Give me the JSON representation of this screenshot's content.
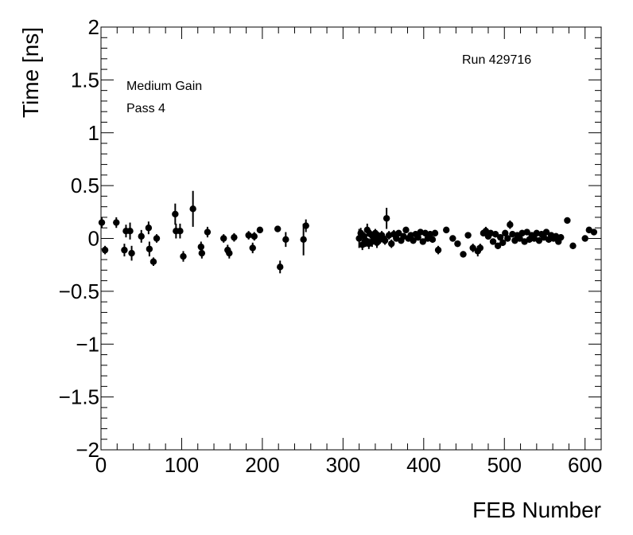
{
  "chart_data": {
    "type": "scatter",
    "title": "",
    "xlabel": "FEB Number",
    "ylabel": "Time [ns]",
    "xlim": [
      0,
      620
    ],
    "ylim": [
      -2,
      2
    ],
    "xticks": [
      0,
      100,
      200,
      300,
      400,
      500,
      600
    ],
    "xtick_labels": [
      "0",
      "100",
      "200",
      "300",
      "400",
      "500",
      "600"
    ],
    "yticks": [
      -2,
      -1.5,
      -1,
      -0.5,
      0,
      0.5,
      1,
      1.5,
      2
    ],
    "ytick_labels": [
      "−2",
      "−1.5",
      "−1",
      "−0.5",
      "0",
      "0.5",
      "1",
      "1.5",
      "2"
    ],
    "grid": false,
    "annotations": [
      "Run 429716",
      "Medium Gain",
      "Pass 4"
    ],
    "marker_color": "#000000",
    "points": [
      {
        "x": 1,
        "y": 0.15,
        "err": 0.05
      },
      {
        "x": 5,
        "y": -0.11,
        "err": 0.04
      },
      {
        "x": 19,
        "y": 0.15,
        "err": 0.05
      },
      {
        "x": 29,
        "y": -0.11,
        "err": 0.06
      },
      {
        "x": 31,
        "y": 0.07,
        "err": 0.06
      },
      {
        "x": 36,
        "y": 0.07,
        "err": 0.08
      },
      {
        "x": 38,
        "y": -0.14,
        "err": 0.07
      },
      {
        "x": 50,
        "y": 0.02,
        "err": 0.06
      },
      {
        "x": 59,
        "y": 0.1,
        "err": 0.06
      },
      {
        "x": 60,
        "y": -0.1,
        "err": 0.07
      },
      {
        "x": 65,
        "y": -0.22,
        "err": 0.04
      },
      {
        "x": 69,
        "y": 0.0,
        "err": 0.04
      },
      {
        "x": 92,
        "y": 0.23,
        "err": 0.1
      },
      {
        "x": 93,
        "y": 0.07,
        "err": 0.07
      },
      {
        "x": 98,
        "y": 0.07,
        "err": 0.07
      },
      {
        "x": 102,
        "y": -0.17,
        "err": 0.05
      },
      {
        "x": 114,
        "y": 0.28,
        "err": 0.17
      },
      {
        "x": 124,
        "y": -0.08,
        "err": 0.05
      },
      {
        "x": 125,
        "y": -0.14,
        "err": 0.05
      },
      {
        "x": 132,
        "y": 0.06,
        "err": 0.05
      },
      {
        "x": 152,
        "y": 0.0,
        "err": 0.04
      },
      {
        "x": 157,
        "y": -0.11,
        "err": 0.05
      },
      {
        "x": 159,
        "y": -0.14,
        "err": 0.05
      },
      {
        "x": 165,
        "y": 0.01,
        "err": 0.04
      },
      {
        "x": 183,
        "y": 0.03,
        "err": 0.04
      },
      {
        "x": 188,
        "y": -0.09,
        "err": 0.05
      },
      {
        "x": 190,
        "y": 0.02,
        "err": 0.04
      },
      {
        "x": 197,
        "y": 0.08,
        "err": 0.03
      },
      {
        "x": 219,
        "y": 0.09,
        "err": 0.03
      },
      {
        "x": 222,
        "y": -0.27,
        "err": 0.06
      },
      {
        "x": 229,
        "y": -0.01,
        "err": 0.07
      },
      {
        "x": 251,
        "y": -0.01,
        "err": 0.15
      },
      {
        "x": 254,
        "y": 0.12,
        "err": 0.06
      },
      {
        "x": 320,
        "y": 0.0,
        "err": 0.09
      },
      {
        "x": 322,
        "y": 0.05,
        "err": 0.05
      },
      {
        "x": 324,
        "y": -0.06,
        "err": 0.05
      },
      {
        "x": 326,
        "y": 0.02,
        "err": 0.04
      },
      {
        "x": 328,
        "y": -0.02,
        "err": 0.06
      },
      {
        "x": 330,
        "y": 0.08,
        "err": 0.06
      },
      {
        "x": 332,
        "y": -0.05,
        "err": 0.05
      },
      {
        "x": 334,
        "y": 0.04,
        "err": 0.04
      },
      {
        "x": 336,
        "y": -0.03,
        "err": 0.05
      },
      {
        "x": 338,
        "y": 0.01,
        "err": 0.04
      },
      {
        "x": 340,
        "y": 0.05,
        "err": 0.04
      },
      {
        "x": 342,
        "y": -0.04,
        "err": 0.05
      },
      {
        "x": 344,
        "y": 0.02,
        "err": 0.04
      },
      {
        "x": 346,
        "y": -0.01,
        "err": 0.04
      },
      {
        "x": 348,
        "y": 0.03,
        "err": 0.04
      },
      {
        "x": 350,
        "y": 0.0,
        "err": 0.04
      },
      {
        "x": 352,
        "y": -0.02,
        "err": 0.04
      },
      {
        "x": 354,
        "y": 0.19,
        "err": 0.1
      },
      {
        "x": 357,
        "y": 0.03,
        "err": 0.04
      },
      {
        "x": 360,
        "y": -0.05,
        "err": 0.04
      },
      {
        "x": 363,
        "y": 0.04,
        "err": 0.04
      },
      {
        "x": 366,
        "y": 0.0,
        "err": 0.03
      },
      {
        "x": 369,
        "y": 0.05,
        "err": 0.03
      },
      {
        "x": 372,
        "y": -0.02,
        "err": 0.03
      },
      {
        "x": 375,
        "y": 0.02,
        "err": 0.03
      },
      {
        "x": 378,
        "y": 0.08,
        "err": 0.03
      },
      {
        "x": 381,
        "y": 0.0,
        "err": 0.03
      },
      {
        "x": 384,
        "y": 0.03,
        "err": 0.03
      },
      {
        "x": 387,
        "y": -0.02,
        "err": 0.03
      },
      {
        "x": 390,
        "y": 0.04,
        "err": 0.03
      },
      {
        "x": 393,
        "y": 0.01,
        "err": 0.03
      },
      {
        "x": 396,
        "y": 0.06,
        "err": 0.03
      },
      {
        "x": 399,
        "y": -0.03,
        "err": 0.03
      },
      {
        "x": 402,
        "y": 0.05,
        "err": 0.03
      },
      {
        "x": 405,
        "y": 0.0,
        "err": 0.03
      },
      {
        "x": 408,
        "y": 0.04,
        "err": 0.03
      },
      {
        "x": 411,
        "y": -0.01,
        "err": 0.03
      },
      {
        "x": 414,
        "y": 0.05,
        "err": 0.03
      },
      {
        "x": 418,
        "y": -0.11,
        "err": 0.04
      },
      {
        "x": 428,
        "y": 0.08,
        "err": 0.03
      },
      {
        "x": 436,
        "y": 0.0,
        "err": 0.03
      },
      {
        "x": 442,
        "y": -0.05,
        "err": 0.03
      },
      {
        "x": 449,
        "y": -0.15,
        "err": 0.03
      },
      {
        "x": 455,
        "y": 0.03,
        "err": 0.03
      },
      {
        "x": 461,
        "y": -0.09,
        "err": 0.04
      },
      {
        "x": 467,
        "y": -0.12,
        "err": 0.05
      },
      {
        "x": 470,
        "y": -0.09,
        "err": 0.04
      },
      {
        "x": 474,
        "y": 0.05,
        "err": 0.03
      },
      {
        "x": 477,
        "y": 0.07,
        "err": 0.04
      },
      {
        "x": 480,
        "y": 0.02,
        "err": 0.03
      },
      {
        "x": 483,
        "y": 0.05,
        "err": 0.03
      },
      {
        "x": 486,
        "y": -0.03,
        "err": 0.03
      },
      {
        "x": 489,
        "y": 0.04,
        "err": 0.03
      },
      {
        "x": 492,
        "y": -0.07,
        "err": 0.03
      },
      {
        "x": 495,
        "y": 0.01,
        "err": 0.03
      },
      {
        "x": 498,
        "y": -0.04,
        "err": 0.03
      },
      {
        "x": 501,
        "y": 0.05,
        "err": 0.03
      },
      {
        "x": 504,
        "y": 0.0,
        "err": 0.03
      },
      {
        "x": 507,
        "y": 0.13,
        "err": 0.04
      },
      {
        "x": 510,
        "y": 0.04,
        "err": 0.03
      },
      {
        "x": 513,
        "y": -0.02,
        "err": 0.03
      },
      {
        "x": 516,
        "y": 0.03,
        "err": 0.03
      },
      {
        "x": 519,
        "y": 0.0,
        "err": 0.03
      },
      {
        "x": 522,
        "y": 0.05,
        "err": 0.03
      },
      {
        "x": 525,
        "y": -0.03,
        "err": 0.03
      },
      {
        "x": 528,
        "y": 0.06,
        "err": 0.03
      },
      {
        "x": 531,
        "y": -0.01,
        "err": 0.03
      },
      {
        "x": 534,
        "y": 0.03,
        "err": 0.03
      },
      {
        "x": 537,
        "y": 0.0,
        "err": 0.03
      },
      {
        "x": 540,
        "y": 0.05,
        "err": 0.03
      },
      {
        "x": 543,
        "y": -0.02,
        "err": 0.03
      },
      {
        "x": 546,
        "y": 0.04,
        "err": 0.03
      },
      {
        "x": 549,
        "y": 0.01,
        "err": 0.03
      },
      {
        "x": 552,
        "y": 0.06,
        "err": 0.03
      },
      {
        "x": 555,
        "y": -0.01,
        "err": 0.03
      },
      {
        "x": 558,
        "y": 0.03,
        "err": 0.03
      },
      {
        "x": 561,
        "y": 0.0,
        "err": 0.03
      },
      {
        "x": 564,
        "y": 0.02,
        "err": 0.03
      },
      {
        "x": 567,
        "y": -0.03,
        "err": 0.03
      },
      {
        "x": 570,
        "y": 0.01,
        "err": 0.03
      },
      {
        "x": 578,
        "y": 0.17,
        "err": 0.03
      },
      {
        "x": 585,
        "y": -0.07,
        "err": 0.03
      },
      {
        "x": 600,
        "y": 0.0,
        "err": 0.03
      },
      {
        "x": 605,
        "y": 0.08,
        "err": 0.03
      },
      {
        "x": 611,
        "y": 0.06,
        "err": 0.03
      }
    ]
  }
}
